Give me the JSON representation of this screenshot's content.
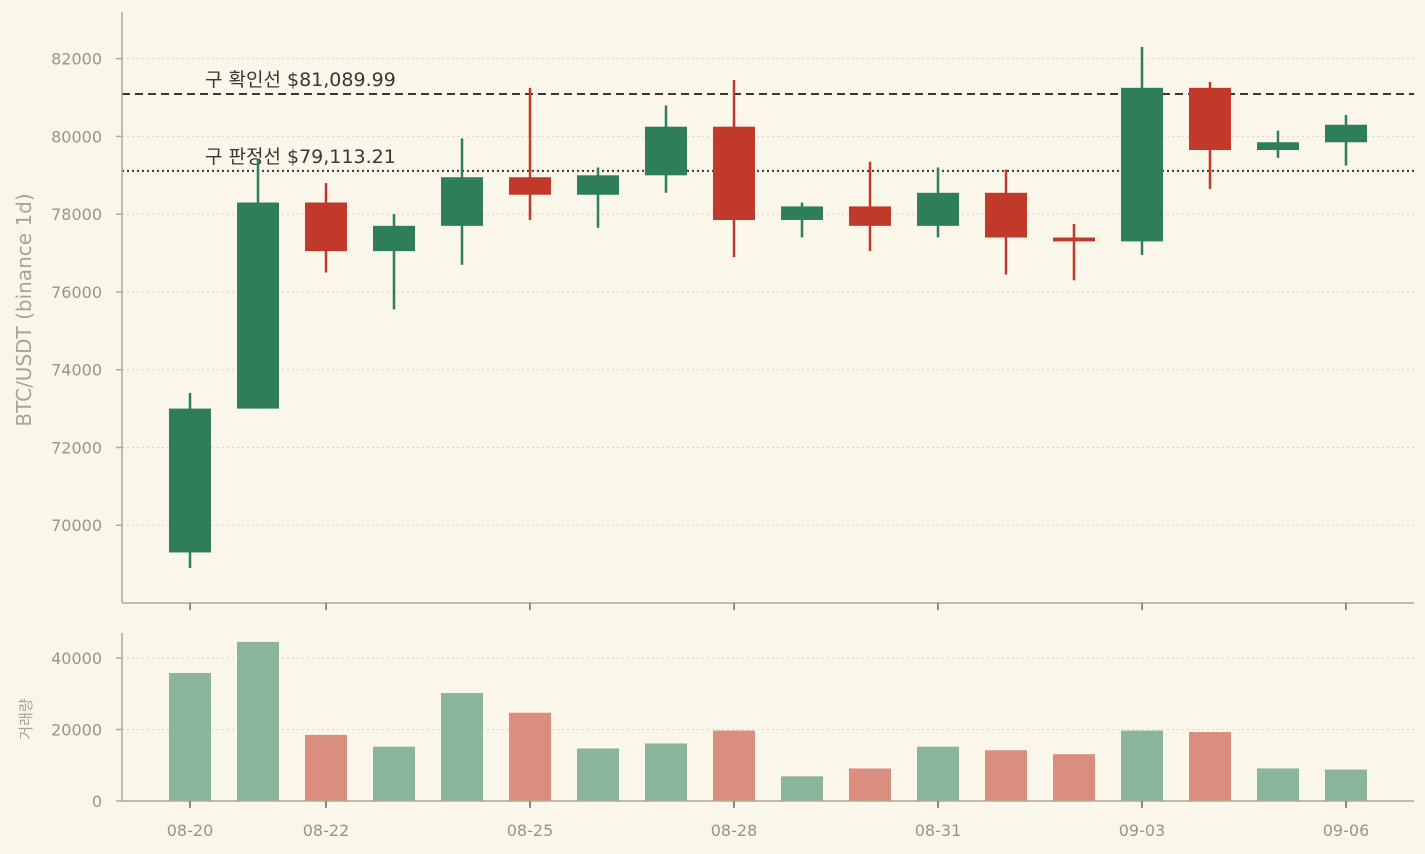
{
  "colors": {
    "background": "#faf6ea",
    "up": "#2e7d5b",
    "down": "#c0392b",
    "up_volume": "#8ab59b",
    "down_volume": "#d98e80",
    "axis": "#b0a999",
    "grid": "#d8d3c4",
    "reference_line": "#3a3833"
  },
  "chart_data": [
    {
      "type": "candlestick",
      "ylabel": "BTC/USDT (binance 1d)",
      "ylim": [
        68000,
        83200
      ],
      "yticks": [
        70000,
        72000,
        74000,
        76000,
        78000,
        80000,
        82000
      ],
      "grid": "horizontal dotted",
      "x": [
        "08-20",
        "08-21",
        "08-22",
        "08-23",
        "08-24",
        "08-25",
        "08-26",
        "08-27",
        "08-28",
        "08-29",
        "08-30",
        "08-31",
        "09-01",
        "09-02",
        "09-03",
        "09-04",
        "09-05",
        "09-06"
      ],
      "xticks": [
        "08-20",
        "08-22",
        "08-25",
        "08-28",
        "08-31",
        "09-03",
        "09-06"
      ],
      "ohlc": [
        {
          "open": 69300,
          "high": 73400,
          "low": 68900,
          "close": 73000
        },
        {
          "open": 73000,
          "high": 79400,
          "low": 73000,
          "close": 78300
        },
        {
          "open": 78300,
          "high": 78800,
          "low": 76500,
          "close": 77050
        },
        {
          "open": 77050,
          "high": 78000,
          "low": 75550,
          "close": 77700
        },
        {
          "open": 77700,
          "high": 79950,
          "low": 76700,
          "close": 78950
        },
        {
          "open": 78950,
          "high": 81250,
          "low": 77850,
          "close": 78500
        },
        {
          "open": 78500,
          "high": 79200,
          "low": 77650,
          "close": 79000
        },
        {
          "open": 79000,
          "high": 80800,
          "low": 78550,
          "close": 80250
        },
        {
          "open": 80250,
          "high": 81450,
          "low": 76900,
          "close": 77850
        },
        {
          "open": 77850,
          "high": 78300,
          "low": 77400,
          "close": 78200
        },
        {
          "open": 78200,
          "high": 79350,
          "low": 77050,
          "close": 77700
        },
        {
          "open": 77700,
          "high": 79200,
          "low": 77400,
          "close": 78550
        },
        {
          "open": 78550,
          "high": 79150,
          "low": 76450,
          "close": 77400
        },
        {
          "open": 77400,
          "high": 77750,
          "low": 76300,
          "close": 77300
        },
        {
          "open": 77300,
          "high": 82300,
          "low": 76950,
          "close": 81250
        },
        {
          "open": 81250,
          "high": 81400,
          "low": 78650,
          "close": 79650
        },
        {
          "open": 79650,
          "high": 80150,
          "low": 79450,
          "close": 79850
        },
        {
          "open": 79850,
          "high": 80550,
          "low": 79250,
          "close": 80300
        }
      ],
      "reference_lines": [
        {
          "label": "구 확인선 $81,089.99",
          "value": 81089.99,
          "style": "dashed"
        },
        {
          "label": "구 판정선 $79,113.21",
          "value": 79113.21,
          "style": "dotted"
        }
      ]
    },
    {
      "type": "bar",
      "ylabel": "거래량",
      "ylim": [
        0,
        47000
      ],
      "yticks": [
        0,
        20000,
        40000
      ],
      "grid": "horizontal dotted",
      "x": [
        "08-20",
        "08-21",
        "08-22",
        "08-23",
        "08-24",
        "08-25",
        "08-26",
        "08-27",
        "08-28",
        "08-29",
        "08-30",
        "08-31",
        "09-01",
        "09-02",
        "09-03",
        "09-04",
        "09-05",
        "09-06"
      ],
      "values": [
        35800,
        44500,
        18500,
        15200,
        30200,
        24700,
        14700,
        16100,
        19700,
        6900,
        9100,
        15200,
        14200,
        13100,
        19700,
        19300,
        9100,
        8800
      ]
    }
  ]
}
